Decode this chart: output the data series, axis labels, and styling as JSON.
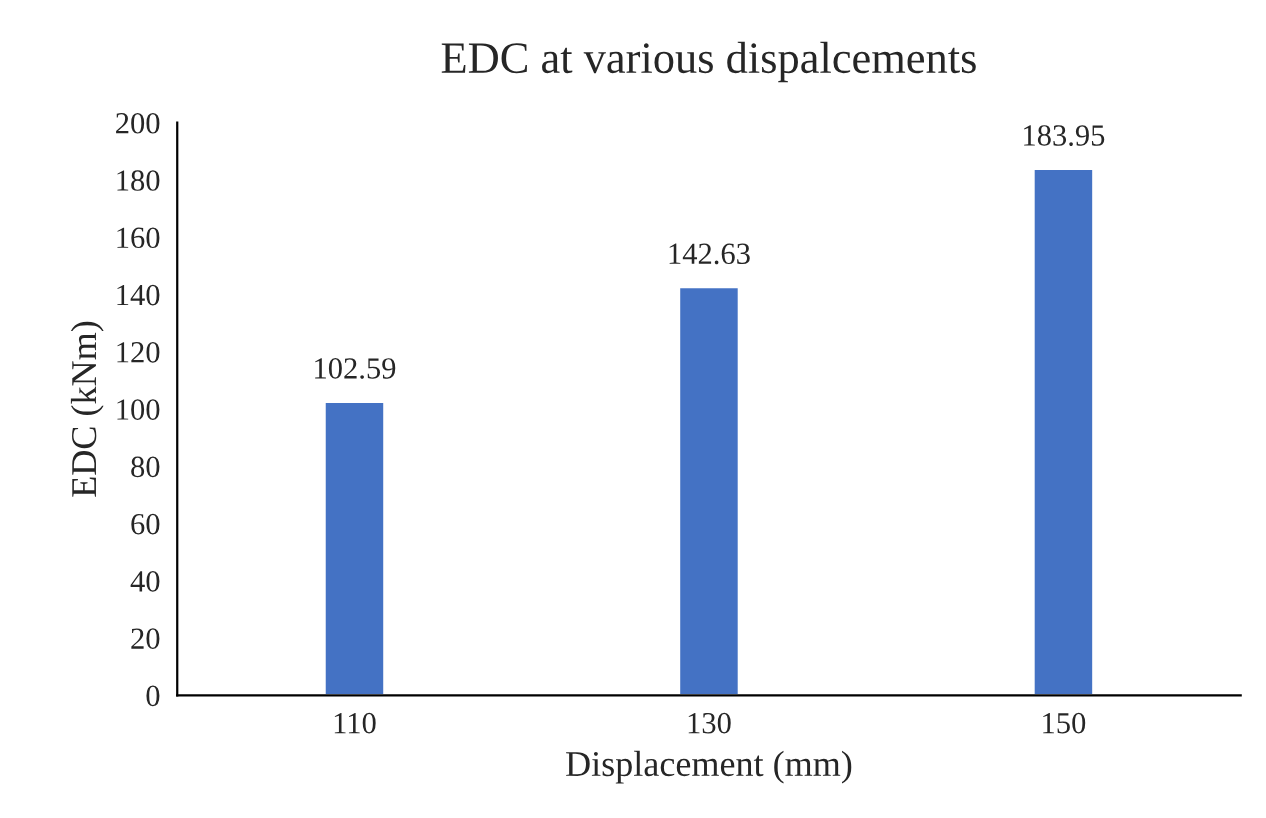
{
  "chart_data": {
    "type": "bar",
    "title": "EDC at various dispalcements",
    "xlabel": "Displacement (mm)",
    "ylabel": "EDC (kNm)",
    "categories": [
      "110",
      "130",
      "150"
    ],
    "values": [
      102.59,
      142.63,
      183.95
    ],
    "color": "#4472c4",
    "ylim": [
      0,
      200
    ],
    "yticks": [
      0,
      20,
      40,
      60,
      80,
      100,
      120,
      140,
      160,
      180,
      200
    ],
    "data_labels": true,
    "grid": false,
    "legend": false
  }
}
